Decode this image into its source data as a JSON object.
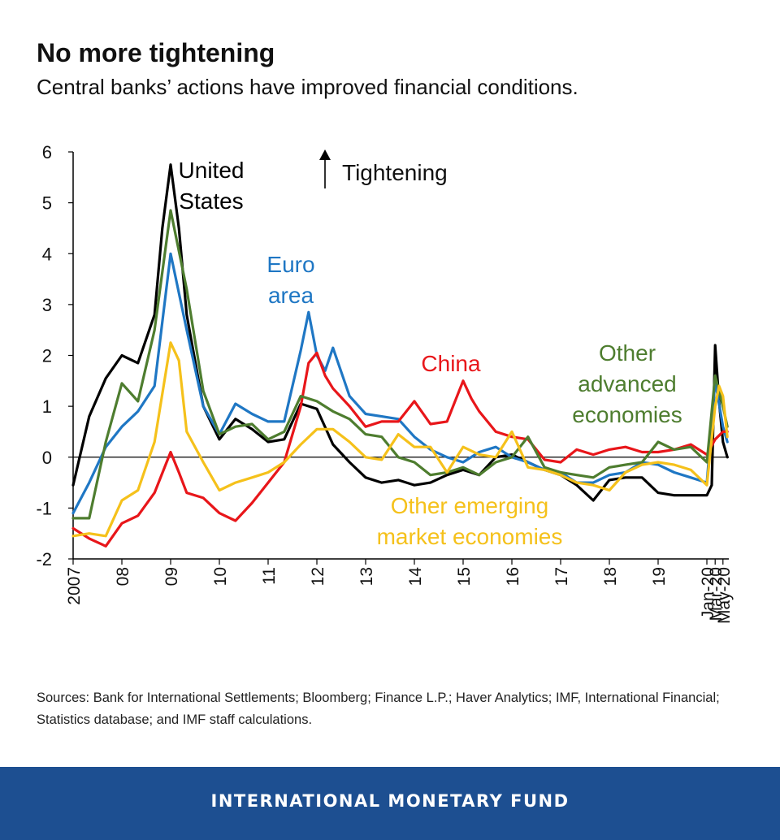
{
  "header": {
    "title": "No more tightening",
    "subtitle": "Central banks’ actions have improved financial conditions."
  },
  "chart_data": {
    "type": "line",
    "title": "No more tightening",
    "ylim": [
      -2,
      6
    ],
    "yticks": [
      "6",
      "5",
      "4",
      "3",
      "2",
      "1",
      "0",
      "-1",
      "-2"
    ],
    "ytick_values": [
      6,
      5,
      4,
      3,
      2,
      1,
      0,
      -1,
      -2
    ],
    "xlim": [
      2007,
      2020.45
    ],
    "xticks": [
      {
        "label": "2007",
        "x": 2007.0
      },
      {
        "label": "08",
        "x": 2008.0
      },
      {
        "label": "09",
        "x": 2009.0
      },
      {
        "label": "10",
        "x": 2010.0
      },
      {
        "label": "11",
        "x": 2011.0
      },
      {
        "label": "12",
        "x": 2012.0
      },
      {
        "label": "13",
        "x": 2013.0
      },
      {
        "label": "14",
        "x": 2014.0
      },
      {
        "label": "15",
        "x": 2015.0
      },
      {
        "label": "16",
        "x": 2016.0
      },
      {
        "label": "17",
        "x": 2017.0
      },
      {
        "label": "18",
        "x": 2018.0
      },
      {
        "label": "19",
        "x": 2019.0
      },
      {
        "label": "Jan-20",
        "x": 2020.0
      },
      {
        "label": "Mar-20",
        "x": 2020.17
      },
      {
        "label": "May-20",
        "x": 2020.33
      }
    ],
    "annotation": "Tightening",
    "series": [
      {
        "name": "United States",
        "label_lines": [
          "United",
          "States"
        ],
        "color": "#000000",
        "x": [
          2007.0,
          2007.33,
          2007.67,
          2008.0,
          2008.33,
          2008.67,
          2008.83,
          2009.0,
          2009.17,
          2009.33,
          2009.67,
          2010.0,
          2010.33,
          2010.67,
          2011.0,
          2011.33,
          2011.67,
          2012.0,
          2012.33,
          2012.67,
          2013.0,
          2013.33,
          2013.67,
          2014.0,
          2014.33,
          2014.67,
          2015.0,
          2015.33,
          2015.67,
          2016.0,
          2016.33,
          2016.67,
          2017.0,
          2017.33,
          2017.67,
          2018.0,
          2018.33,
          2018.67,
          2019.0,
          2019.33,
          2019.67,
          2020.0,
          2020.1,
          2020.17,
          2020.25,
          2020.33,
          2020.42
        ],
        "y": [
          -0.55,
          0.8,
          1.55,
          2.0,
          1.85,
          2.8,
          4.5,
          5.75,
          4.5,
          2.8,
          1.0,
          0.35,
          0.75,
          0.55,
          0.3,
          0.35,
          1.05,
          0.95,
          0.25,
          -0.1,
          -0.4,
          -0.5,
          -0.45,
          -0.55,
          -0.5,
          -0.35,
          -0.25,
          -0.35,
          0.0,
          0.05,
          -0.1,
          -0.25,
          -0.35,
          -0.55,
          -0.85,
          -0.45,
          -0.4,
          -0.4,
          -0.7,
          -0.75,
          -0.75,
          -0.75,
          -0.55,
          2.2,
          1.1,
          0.3,
          0.0
        ]
      },
      {
        "name": "Euro area",
        "label_lines": [
          "Euro",
          "area"
        ],
        "color": "#1f77c4",
        "x": [
          2007.0,
          2007.33,
          2007.67,
          2008.0,
          2008.33,
          2008.67,
          2009.0,
          2009.33,
          2009.67,
          2010.0,
          2010.33,
          2010.67,
          2011.0,
          2011.33,
          2011.67,
          2011.83,
          2012.0,
          2012.17,
          2012.33,
          2012.67,
          2013.0,
          2013.33,
          2013.67,
          2014.0,
          2014.33,
          2014.67,
          2015.0,
          2015.33,
          2015.67,
          2016.0,
          2016.33,
          2016.67,
          2017.0,
          2017.33,
          2017.67,
          2018.0,
          2018.33,
          2018.67,
          2019.0,
          2019.33,
          2019.67,
          2020.0,
          2020.17,
          2020.33,
          2020.42
        ],
        "y": [
          -1.1,
          -0.5,
          0.2,
          0.6,
          0.9,
          1.4,
          4.0,
          2.5,
          1.0,
          0.45,
          1.05,
          0.85,
          0.7,
          0.7,
          2.1,
          2.85,
          2.0,
          1.7,
          2.15,
          1.2,
          0.85,
          0.8,
          0.75,
          0.4,
          0.15,
          0.0,
          -0.1,
          0.1,
          0.2,
          0.0,
          -0.1,
          -0.25,
          -0.3,
          -0.5,
          -0.5,
          -0.35,
          -0.3,
          -0.1,
          -0.15,
          -0.3,
          -0.4,
          -0.5,
          1.5,
          0.6,
          0.3
        ]
      },
      {
        "name": "China",
        "label_lines": [
          "China"
        ],
        "color": "#e8161a",
        "x": [
          2007.0,
          2007.33,
          2007.67,
          2008.0,
          2008.33,
          2008.67,
          2009.0,
          2009.17,
          2009.33,
          2009.67,
          2010.0,
          2010.33,
          2010.67,
          2011.0,
          2011.33,
          2011.67,
          2011.83,
          2012.0,
          2012.17,
          2012.33,
          2012.67,
          2013.0,
          2013.33,
          2013.67,
          2014.0,
          2014.33,
          2014.67,
          2015.0,
          2015.17,
          2015.33,
          2015.67,
          2016.0,
          2016.33,
          2016.67,
          2017.0,
          2017.33,
          2017.67,
          2018.0,
          2018.33,
          2018.67,
          2019.0,
          2019.33,
          2019.67,
          2020.0,
          2020.17,
          2020.33,
          2020.42
        ],
        "y": [
          -1.4,
          -1.6,
          -1.75,
          -1.3,
          -1.15,
          -0.7,
          0.1,
          -0.3,
          -0.7,
          -0.8,
          -1.1,
          -1.25,
          -0.9,
          -0.5,
          -0.1,
          1.0,
          1.85,
          2.05,
          1.6,
          1.35,
          1.0,
          0.6,
          0.7,
          0.7,
          1.1,
          0.65,
          0.7,
          1.5,
          1.15,
          0.9,
          0.5,
          0.4,
          0.35,
          -0.05,
          -0.1,
          0.15,
          0.05,
          0.15,
          0.2,
          0.1,
          0.1,
          0.15,
          0.25,
          0.05,
          0.35,
          0.5,
          0.5
        ]
      },
      {
        "name": "Other advanced economies",
        "label_lines": [
          "Other",
          "advanced",
          "economies"
        ],
        "color": "#4e7d2f",
        "x": [
          2007.0,
          2007.33,
          2007.67,
          2008.0,
          2008.33,
          2008.67,
          2009.0,
          2009.33,
          2009.67,
          2010.0,
          2010.33,
          2010.67,
          2011.0,
          2011.33,
          2011.67,
          2012.0,
          2012.33,
          2012.67,
          2013.0,
          2013.33,
          2013.67,
          2014.0,
          2014.33,
          2014.67,
          2015.0,
          2015.33,
          2015.67,
          2016.0,
          2016.33,
          2016.67,
          2017.0,
          2017.33,
          2017.67,
          2018.0,
          2018.33,
          2018.67,
          2019.0,
          2019.33,
          2019.67,
          2020.0,
          2020.17,
          2020.33,
          2020.42
        ],
        "y": [
          -1.2,
          -1.2,
          0.3,
          1.45,
          1.1,
          2.5,
          4.85,
          3.3,
          1.3,
          0.45,
          0.6,
          0.65,
          0.35,
          0.5,
          1.2,
          1.1,
          0.9,
          0.75,
          0.45,
          0.4,
          0.0,
          -0.1,
          -0.35,
          -0.3,
          -0.2,
          -0.35,
          -0.1,
          0.0,
          0.4,
          -0.2,
          -0.3,
          -0.35,
          -0.4,
          -0.2,
          -0.15,
          -0.1,
          0.3,
          0.15,
          0.2,
          -0.1,
          1.6,
          1.0,
          0.6
        ]
      },
      {
        "name": "Other emerging market economies",
        "label_lines": [
          "Other emerging",
          "market economies"
        ],
        "color": "#f5c11b",
        "x": [
          2007.0,
          2007.33,
          2007.67,
          2008.0,
          2008.33,
          2008.67,
          2009.0,
          2009.17,
          2009.33,
          2009.67,
          2010.0,
          2010.33,
          2010.67,
          2011.0,
          2011.33,
          2011.67,
          2012.0,
          2012.33,
          2012.67,
          2013.0,
          2013.33,
          2013.67,
          2014.0,
          2014.33,
          2014.67,
          2015.0,
          2015.33,
          2015.67,
          2016.0,
          2016.33,
          2016.67,
          2017.0,
          2017.33,
          2017.67,
          2018.0,
          2018.33,
          2018.67,
          2019.0,
          2019.33,
          2019.67,
          2020.0,
          2020.17,
          2020.25,
          2020.33,
          2020.42
        ],
        "y": [
          -1.55,
          -1.5,
          -1.55,
          -0.85,
          -0.65,
          0.3,
          2.25,
          1.9,
          0.5,
          -0.1,
          -0.65,
          -0.5,
          -0.4,
          -0.3,
          -0.1,
          0.25,
          0.55,
          0.55,
          0.3,
          0.0,
          -0.05,
          0.45,
          0.2,
          0.2,
          -0.3,
          0.2,
          0.05,
          0.0,
          0.5,
          -0.2,
          -0.25,
          -0.35,
          -0.5,
          -0.55,
          -0.65,
          -0.3,
          -0.15,
          -0.1,
          -0.15,
          -0.25,
          -0.55,
          1.0,
          1.4,
          1.2,
          0.4
        ]
      }
    ]
  },
  "sources": "Sources: Bank for International Settlements; Bloomberg; Finance L.P.; Haver Analytics; IMF, International Financial; Statistics database; and IMF staff calculations.",
  "footer": {
    "org_name": "INTERNATIONAL MONETARY FUND",
    "background": "#1d4f91"
  }
}
